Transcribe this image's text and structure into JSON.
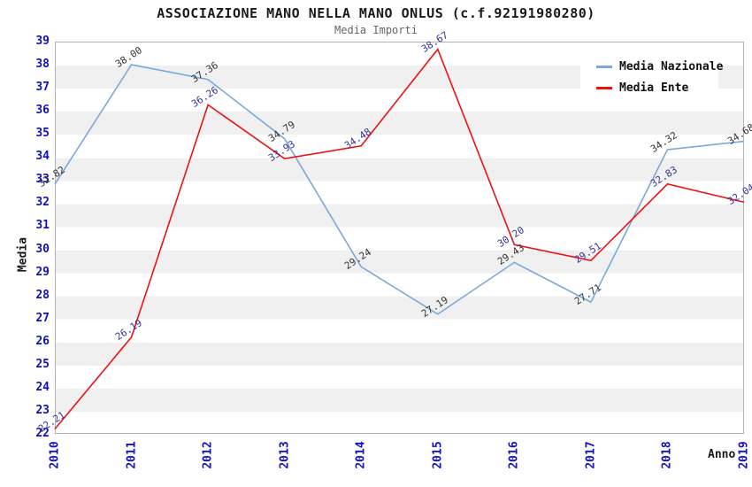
{
  "title": "ASSOCIAZIONE MANO NELLA MANO ONLUS (c.f.92191980280)",
  "subtitle": "Media Importi",
  "colors": {
    "axis_tick": "#0f0fcc",
    "band": "#f0f0f0",
    "plot_border": "#b3b3b3",
    "title_text": "#1a1a1a",
    "subtitle_text": "#666666"
  },
  "chart_data": {
    "type": "line",
    "title": "ASSOCIAZIONE MANO NELLA MANO ONLUS (c.f.92191980280)",
    "subtitle": "Media Importi",
    "x": [
      2010,
      2011,
      2012,
      2013,
      2014,
      2015,
      2016,
      2017,
      2018,
      2019
    ],
    "xlabel": "Anno",
    "ylabel": "Media",
    "ylim": [
      22,
      39
    ],
    "y_ticks": [
      22,
      23,
      24,
      25,
      26,
      27,
      28,
      29,
      30,
      31,
      32,
      33,
      34,
      35,
      36,
      37,
      38,
      39
    ],
    "grid": "alternating horizontal bands, 1-unit stripes",
    "legend_position": "top-right",
    "data_labels": "each point labeled with value, rotated",
    "series": [
      {
        "name": "Media Nazionale",
        "color": "#79a9dd",
        "label_color": "#333333",
        "values": [
          32.82,
          38.0,
          37.36,
          34.79,
          29.24,
          27.19,
          29.43,
          27.71,
          34.32,
          34.68
        ]
      },
      {
        "name": "Media Ente",
        "color": "#ee1111",
        "label_color": "#333399",
        "values": [
          22.21,
          26.19,
          36.26,
          33.93,
          34.48,
          38.67,
          30.2,
          29.51,
          32.83,
          32.04
        ]
      }
    ]
  }
}
